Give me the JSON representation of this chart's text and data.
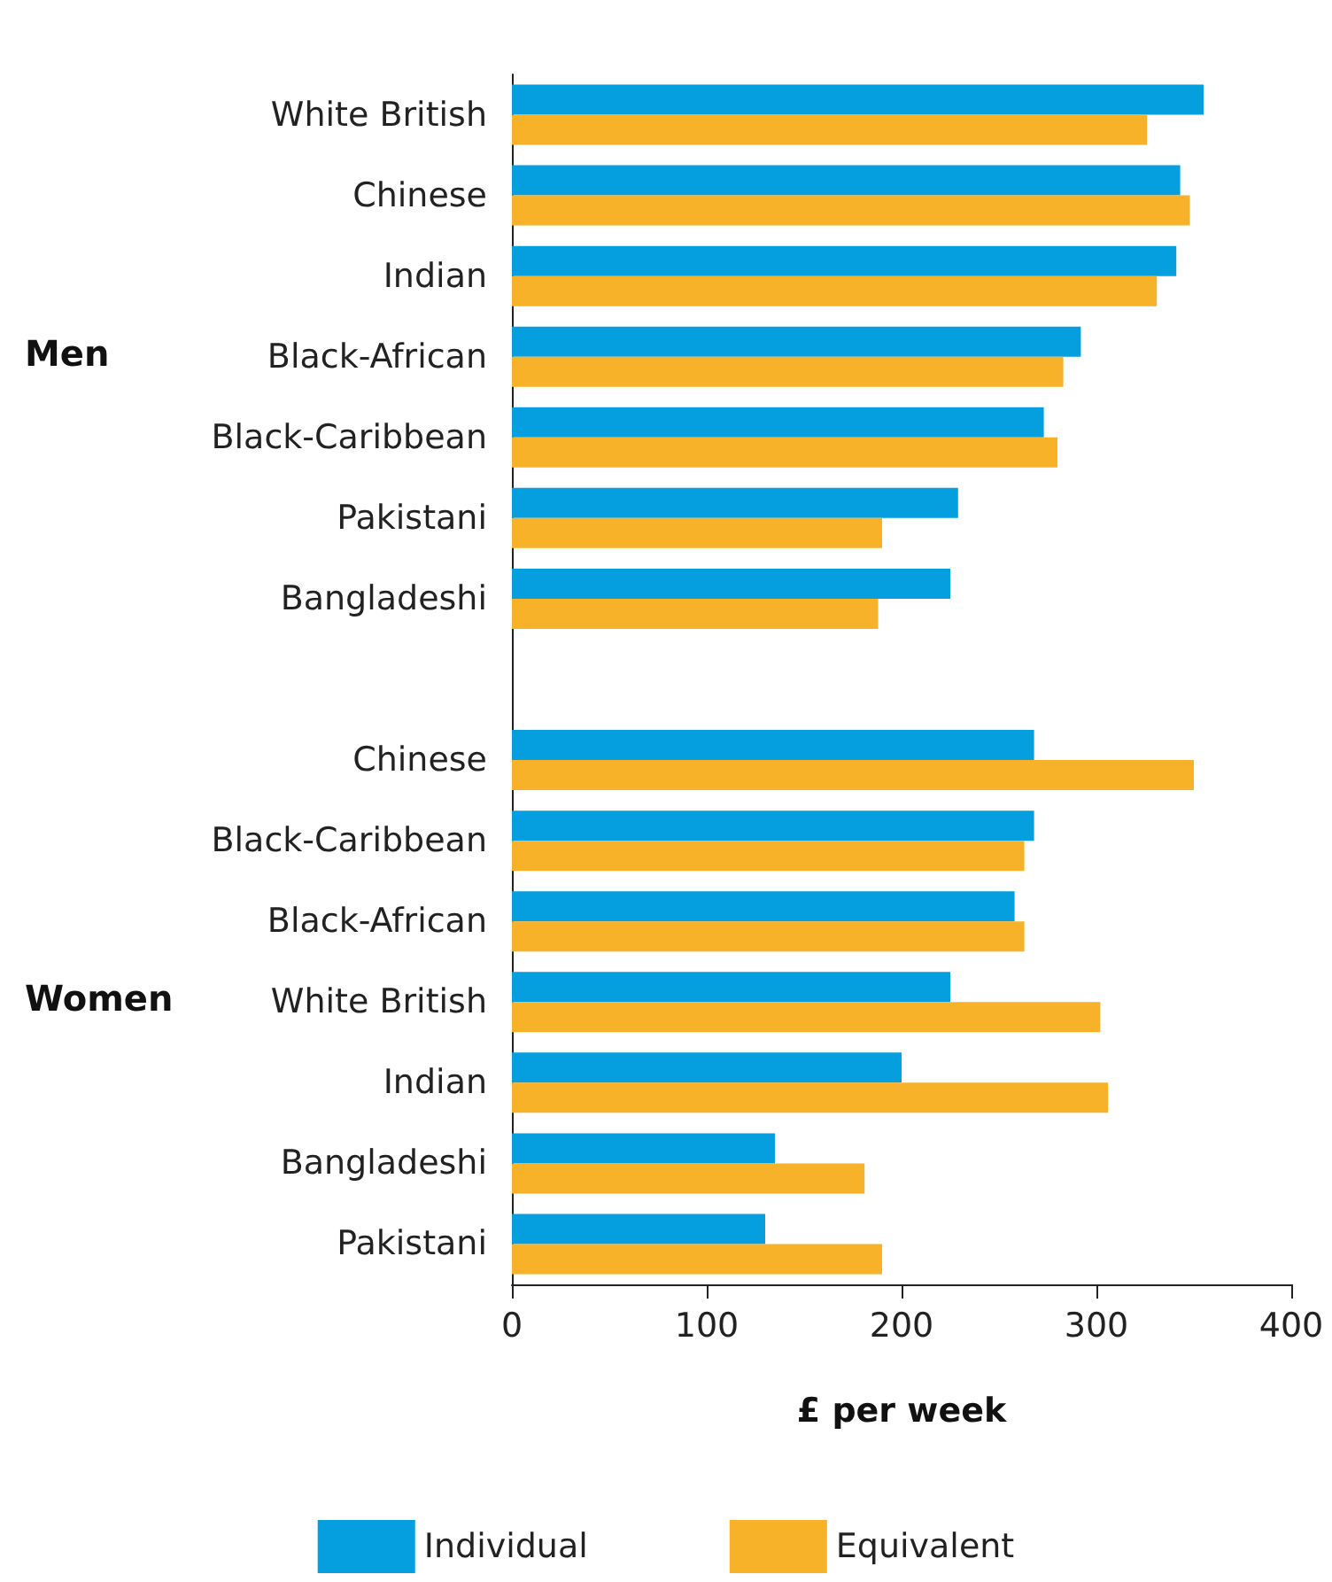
{
  "chart_data": {
    "type": "bar",
    "orientation": "horizontal",
    "xlabel": "£ per week",
    "categories": [
      "White British",
      "Chinese",
      "Indian",
      "Black-African",
      "Black-Caribbean",
      "Pakistani",
      "Bangladeshi",
      null,
      "Chinese",
      "Black-Caribbean",
      "Black-African",
      "White British",
      "Indian",
      "Bangladeshi",
      "Pakistani"
    ],
    "series": [
      {
        "name": "Individual",
        "color": "#059fe0",
        "values": [
          355,
          343,
          341,
          292,
          273,
          229,
          225,
          null,
          268,
          268,
          258,
          225,
          200,
          135,
          130
        ]
      },
      {
        "name": "Equivalent",
        "color": "#f8b22a",
        "values": [
          326,
          348,
          331,
          283,
          280,
          190,
          188,
          null,
          350,
          263,
          263,
          302,
          306,
          181,
          190
        ]
      }
    ],
    "xlim": [
      0,
      400
    ],
    "xticks": [
      0,
      100,
      200,
      300,
      400
    ],
    "grid": false,
    "legend": "bottom",
    "annotations": [
      "Men",
      "Women"
    ]
  }
}
